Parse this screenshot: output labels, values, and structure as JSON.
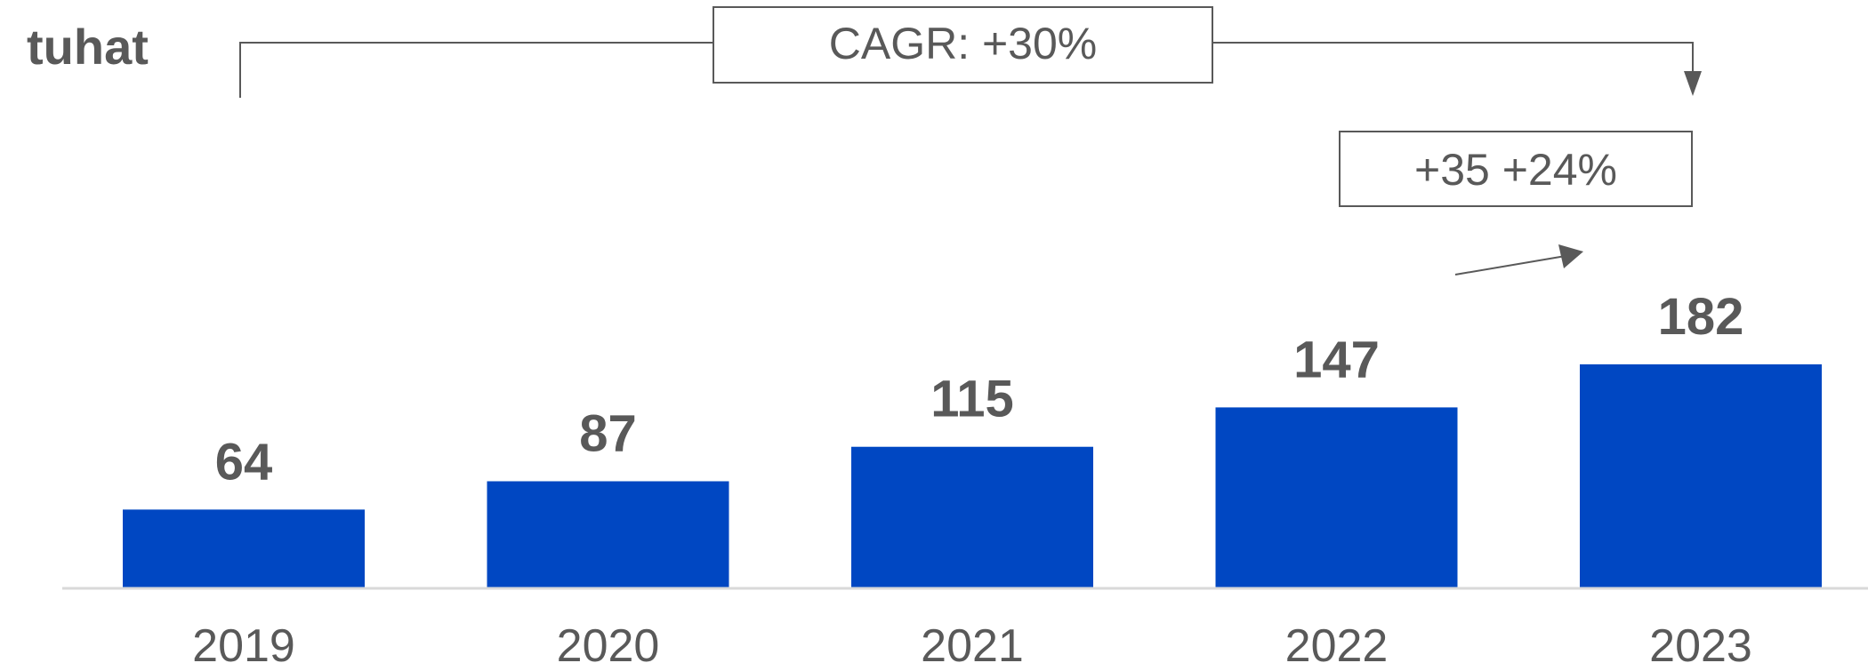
{
  "colors": {
    "bar": "#0047c2",
    "text": "#595959",
    "axis": "#d9d9d9",
    "annotation": "#595959"
  },
  "chart_data": {
    "type": "bar",
    "unit_label": "tuhat",
    "categories": [
      "2019",
      "2020",
      "2021",
      "2022",
      "2023"
    ],
    "values": [
      64,
      87,
      115,
      147,
      182
    ],
    "data_labels": [
      "64",
      "87",
      "115",
      "147",
      "182"
    ],
    "ylim": [
      0,
      200
    ],
    "grid": false,
    "annotations": {
      "cagr": {
        "label": "CAGR: +30%",
        "from": "2019",
        "to": "2023"
      },
      "change": {
        "label": "+35 +24%",
        "from": "2022",
        "to": "2023"
      }
    }
  }
}
